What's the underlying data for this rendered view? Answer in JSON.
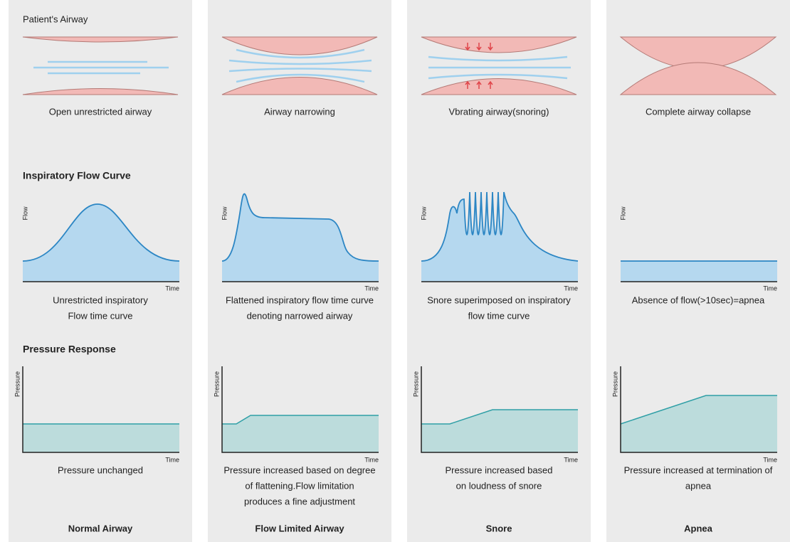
{
  "section_titles": {
    "airway": "Patient's Airway",
    "flow": "Inspiratory Flow Curve",
    "pressure": "Pressure Response"
  },
  "axis_labels": {
    "flow": "Flow",
    "pressure": "Pressure",
    "time": "Time"
  },
  "columns": [
    {
      "name": "Normal Airway",
      "airway_caption": "Open unrestricted airway",
      "flow_caption": [
        "Unrestricted inspiratory",
        "Flow time curve"
      ],
      "pressure_caption": [
        "Pressure unchanged"
      ]
    },
    {
      "name": "Flow Limited Airway",
      "airway_caption": "Airway narrowing",
      "flow_caption": [
        "Flattened inspiratory flow time curve",
        "denoting narrowed airway"
      ],
      "pressure_caption": [
        "Pressure increased based on degree",
        "of  flattening.Flow limitation",
        "produces a fine adjustment"
      ]
    },
    {
      "name": "Snore",
      "airway_caption": "Vbrating airway(snoring)",
      "flow_caption": [
        "Snore superimposed on inspiratory",
        "flow time curve"
      ],
      "pressure_caption": [
        "Pressure increased based",
        "on loudness of snore"
      ]
    },
    {
      "name": "Apnea",
      "airway_caption": "Complete airway collapse",
      "flow_caption": [
        "Absence of flow(>10sec)=apnea"
      ],
      "pressure_caption": [
        "Pressure increased at termination of",
        "apnea"
      ]
    }
  ]
}
